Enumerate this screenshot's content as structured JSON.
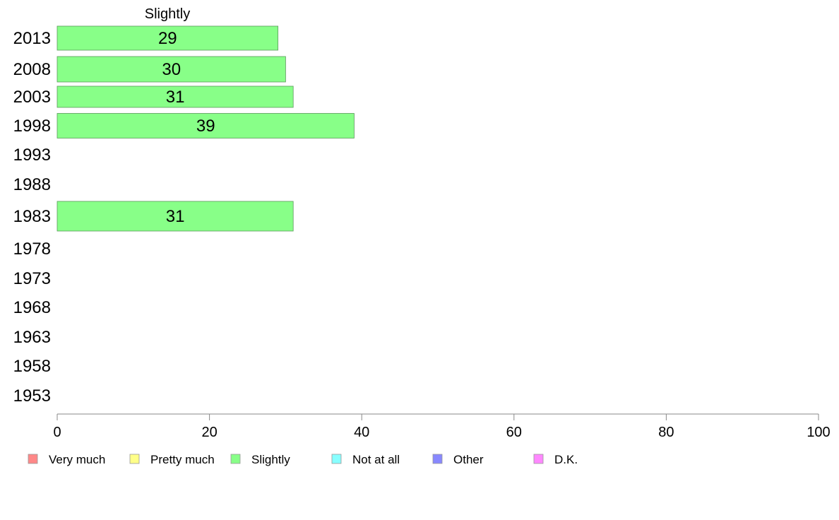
{
  "chart_data": {
    "type": "bar",
    "orientation": "horizontal",
    "title": "Slightly",
    "xlim": [
      0,
      100
    ],
    "xticks": [
      0,
      20,
      40,
      60,
      80,
      100
    ],
    "categories": [
      "2013",
      "2008",
      "2003",
      "1998",
      "1993",
      "1988",
      "1983",
      "1978",
      "1973",
      "1968",
      "1963",
      "1958",
      "1953"
    ],
    "series": [
      {
        "name": "Slightly",
        "color": "#88ff88",
        "values": [
          29,
          30,
          31,
          39,
          null,
          null,
          31,
          null,
          null,
          null,
          null,
          null,
          null
        ],
        "labels": [
          "29",
          "30",
          "31",
          "39",
          null,
          null,
          "31",
          null,
          null,
          null,
          null,
          null,
          null
        ]
      }
    ],
    "legend": {
      "position": "bottom",
      "items": [
        {
          "label": "Very much",
          "color": "#ff8888"
        },
        {
          "label": "Pretty much",
          "color": "#ffff88"
        },
        {
          "label": "Slightly",
          "color": "#88ff88"
        },
        {
          "label": "Not at all",
          "color": "#88ffff"
        },
        {
          "label": "Other",
          "color": "#8888ff"
        },
        {
          "label": "D.K.",
          "color": "#ff88ff"
        }
      ]
    },
    "grid": false
  }
}
